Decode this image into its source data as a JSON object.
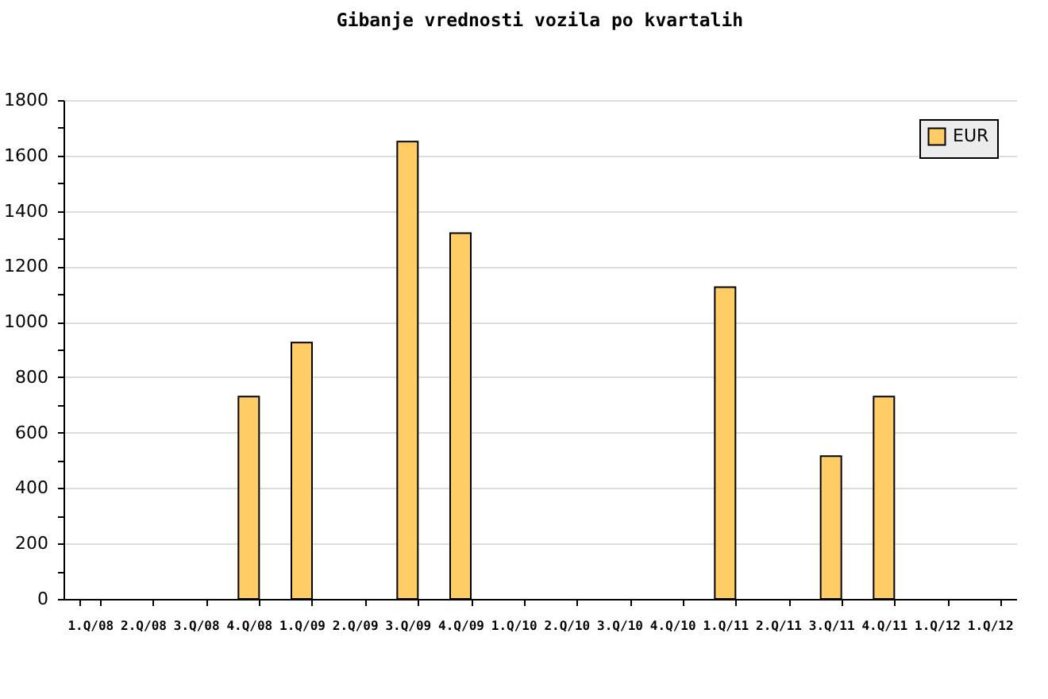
{
  "chart_data": {
    "type": "bar",
    "title": "Gibanje vrednosti vozila po kvartalih",
    "categories": [
      "1.Q/08",
      "2.Q/08",
      "3.Q/08",
      "4.Q/08",
      "1.Q/09",
      "2.Q/09",
      "3.Q/09",
      "4.Q/09",
      "1.Q/10",
      "2.Q/10",
      "3.Q/10",
      "4.Q/10",
      "1.Q/11",
      "2.Q/11",
      "3.Q/11",
      "4.Q/11",
      "1.Q/12",
      "1.Q/12"
    ],
    "series": [
      {
        "name": "EUR",
        "color": "#ffcc66",
        "values": [
          null,
          null,
          null,
          730,
          925,
          null,
          1650,
          1320,
          null,
          null,
          null,
          null,
          1125,
          null,
          515,
          730,
          null,
          null
        ]
      }
    ],
    "ylim": [
      0,
      1800
    ],
    "yticks": [
      0,
      {
        "value": 100,
        "label": null
      },
      200,
      {
        "value": 300,
        "label": null
      },
      400,
      {
        "value": 500,
        "label": null
      },
      600,
      {
        "value": 700,
        "label": null
      },
      800,
      {
        "value": 900,
        "label": null
      },
      1000,
      {
        "value": 1100,
        "label": null
      },
      1200,
      {
        "value": 1300,
        "label": null
      },
      1400,
      {
        "value": 1500,
        "label": null
      },
      1600,
      {
        "value": 1700,
        "label": null
      },
      1800
    ],
    "grid": "y",
    "legend": "top right"
  }
}
